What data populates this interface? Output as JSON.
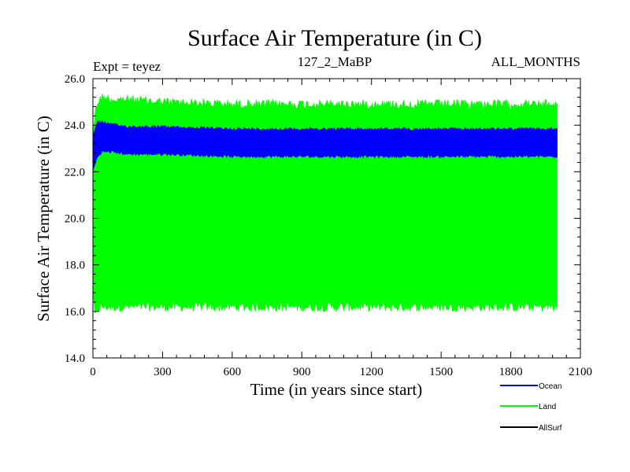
{
  "chart_data": {
    "type": "area",
    "title": "Surface Air Temperature (in C)",
    "subtitle_left": "Expt = teyez",
    "subtitle_center": "127_2_MaBP",
    "subtitle_right": "ALL_MONTHS",
    "xlabel": "Time (in years since start)",
    "ylabel": "Surface Air Temperature (in C)",
    "xlim": [
      0,
      2100
    ],
    "ylim": [
      14,
      26
    ],
    "x_ticks": [
      0,
      300,
      600,
      900,
      1200,
      1500,
      1800,
      2100
    ],
    "x_tick_labels": [
      "0",
      "300",
      "600",
      "900",
      "1200",
      "1500",
      "1800",
      "2100"
    ],
    "y_ticks": [
      14,
      16,
      18,
      20,
      22,
      24,
      26
    ],
    "y_tick_labels": [
      "14.0",
      "16.0",
      "18.0",
      "20.0",
      "22.0",
      "24.0",
      "26.0"
    ],
    "x_end": 2000,
    "series": [
      {
        "name": "Land",
        "color": "#00ff00",
        "envelope": {
          "x": [
            0,
            10,
            20,
            40,
            80,
            150,
            300,
            600,
            900,
            1200,
            1500,
            1800,
            2000
          ],
          "upper": [
            23.8,
            24.8,
            25.2,
            25.4,
            25.3,
            25.3,
            25.2,
            25.1,
            25.1,
            25.1,
            25.1,
            25.1,
            25.1
          ],
          "lower": [
            16.5,
            15.5,
            15.9,
            16.0,
            16.0,
            16.0,
            16.0,
            16.0,
            16.0,
            16.0,
            16.0,
            16.0,
            16.0
          ]
        },
        "noise": 0.4
      },
      {
        "name": "Ocean",
        "color": "#0000ff",
        "envelope": {
          "x": [
            0,
            10,
            20,
            40,
            80,
            150,
            300,
            600,
            900,
            1200,
            1500,
            1800,
            2000
          ],
          "upper": [
            23.5,
            24.0,
            24.2,
            24.2,
            24.1,
            24.0,
            24.0,
            23.9,
            23.9,
            23.9,
            23.9,
            23.9,
            23.9
          ],
          "lower": [
            22.0,
            22.3,
            22.6,
            22.8,
            22.8,
            22.7,
            22.7,
            22.6,
            22.6,
            22.6,
            22.6,
            22.6,
            22.6
          ]
        },
        "noise": 0.12
      },
      {
        "name": "AllSurf",
        "color": "#000000"
      }
    ],
    "legend": [
      "Ocean",
      "Land",
      "AllSurf"
    ],
    "legend_position": "bottom-right"
  }
}
